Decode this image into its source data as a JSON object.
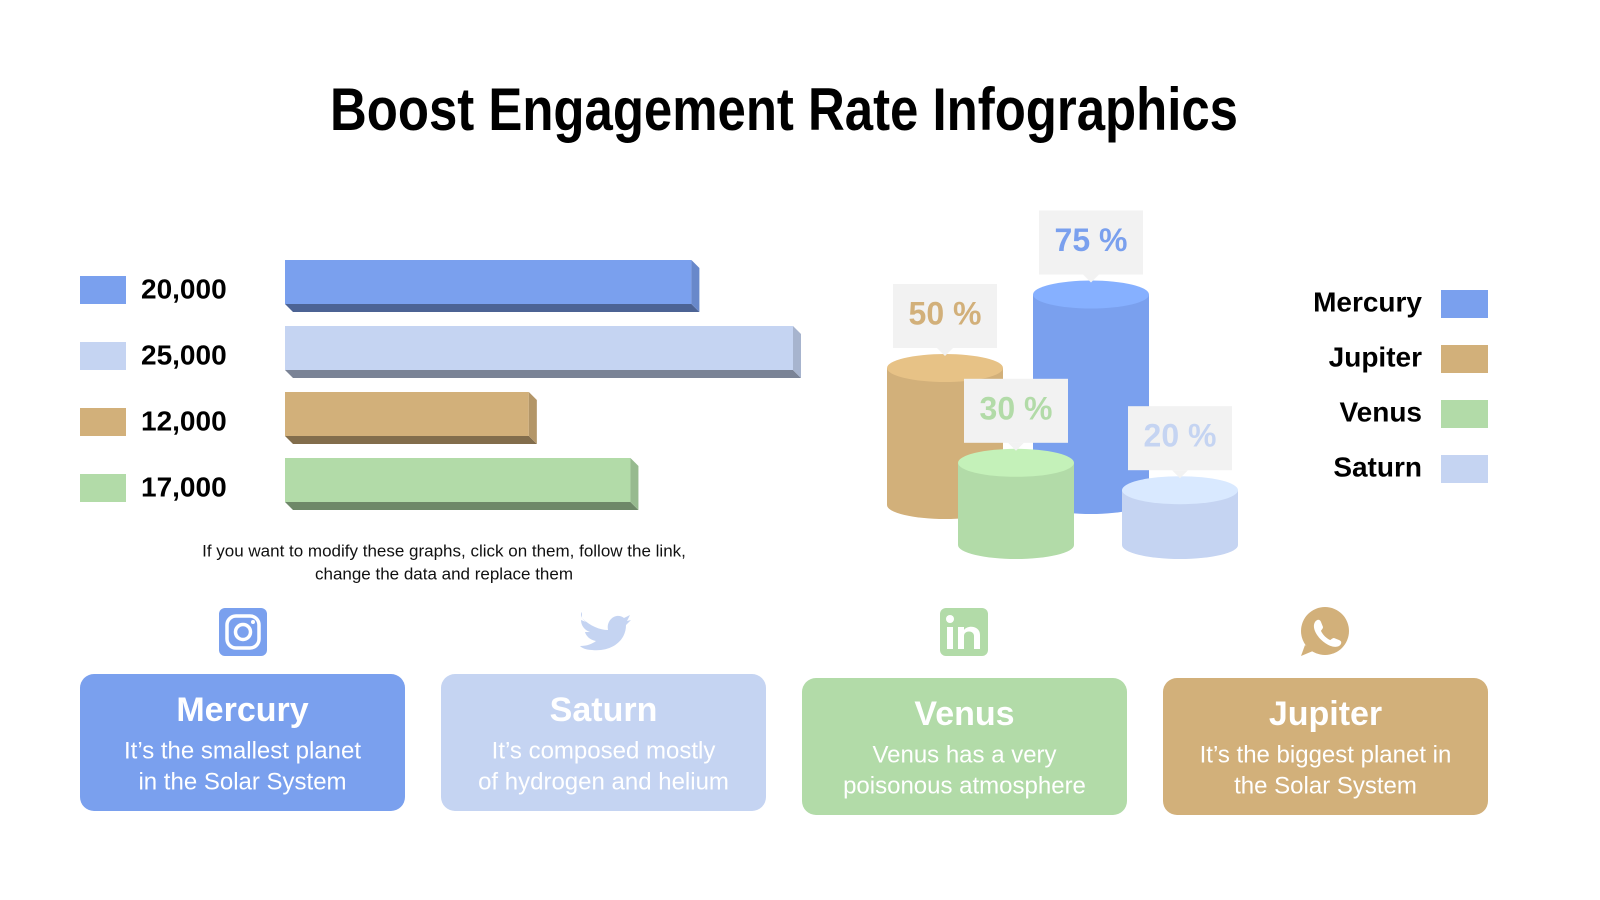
{
  "title": "Boost Engagement Rate Infographics",
  "note": [
    "If you want to modify these graphs, click on them, follow the link,",
    "change the data and replace them"
  ],
  "chart_data": [
    {
      "type": "bar",
      "orientation": "horizontal",
      "values": [
        20000,
        25000,
        12000,
        17000
      ],
      "value_labels": [
        "20,000",
        "25,000",
        "12,000",
        "17,000"
      ],
      "colors": [
        "#7aa0ee",
        "#c5d4f2",
        "#d2b07a",
        "#b2dba8"
      ]
    },
    {
      "type": "cylinder",
      "series": [
        {
          "name": "Mercury",
          "color": "#7aa0ee",
          "values": [
            75
          ],
          "value_labels": [
            "75 %"
          ]
        },
        {
          "name": "Jupiter",
          "color": "#d2b07a",
          "values": [
            50
          ],
          "value_labels": [
            "50 %"
          ]
        },
        {
          "name": "Venus",
          "color": "#b2dba8",
          "values": [
            30
          ],
          "value_labels": [
            "30 %"
          ]
        },
        {
          "name": "Saturn",
          "color": "#c5d4f2",
          "values": [
            20
          ],
          "value_labels": [
            "20 %"
          ]
        }
      ]
    }
  ],
  "cards": [
    {
      "title": "Mercury",
      "lines": [
        "It’s the smallest planet",
        "in the Solar System"
      ],
      "color": "#7aa0ee"
    },
    {
      "title": "Saturn",
      "lines": [
        "It’s composed mostly",
        "of hydrogen and helium"
      ],
      "color": "#c5d4f2"
    },
    {
      "title": "Venus",
      "lines": [
        "Venus has a very",
        "poisonous atmosphere"
      ],
      "color": "#b2dba8"
    },
    {
      "title": "Jupiter",
      "lines": [
        "It’s the biggest planet in",
        "the Solar System"
      ],
      "color": "#d2b07a"
    }
  ]
}
